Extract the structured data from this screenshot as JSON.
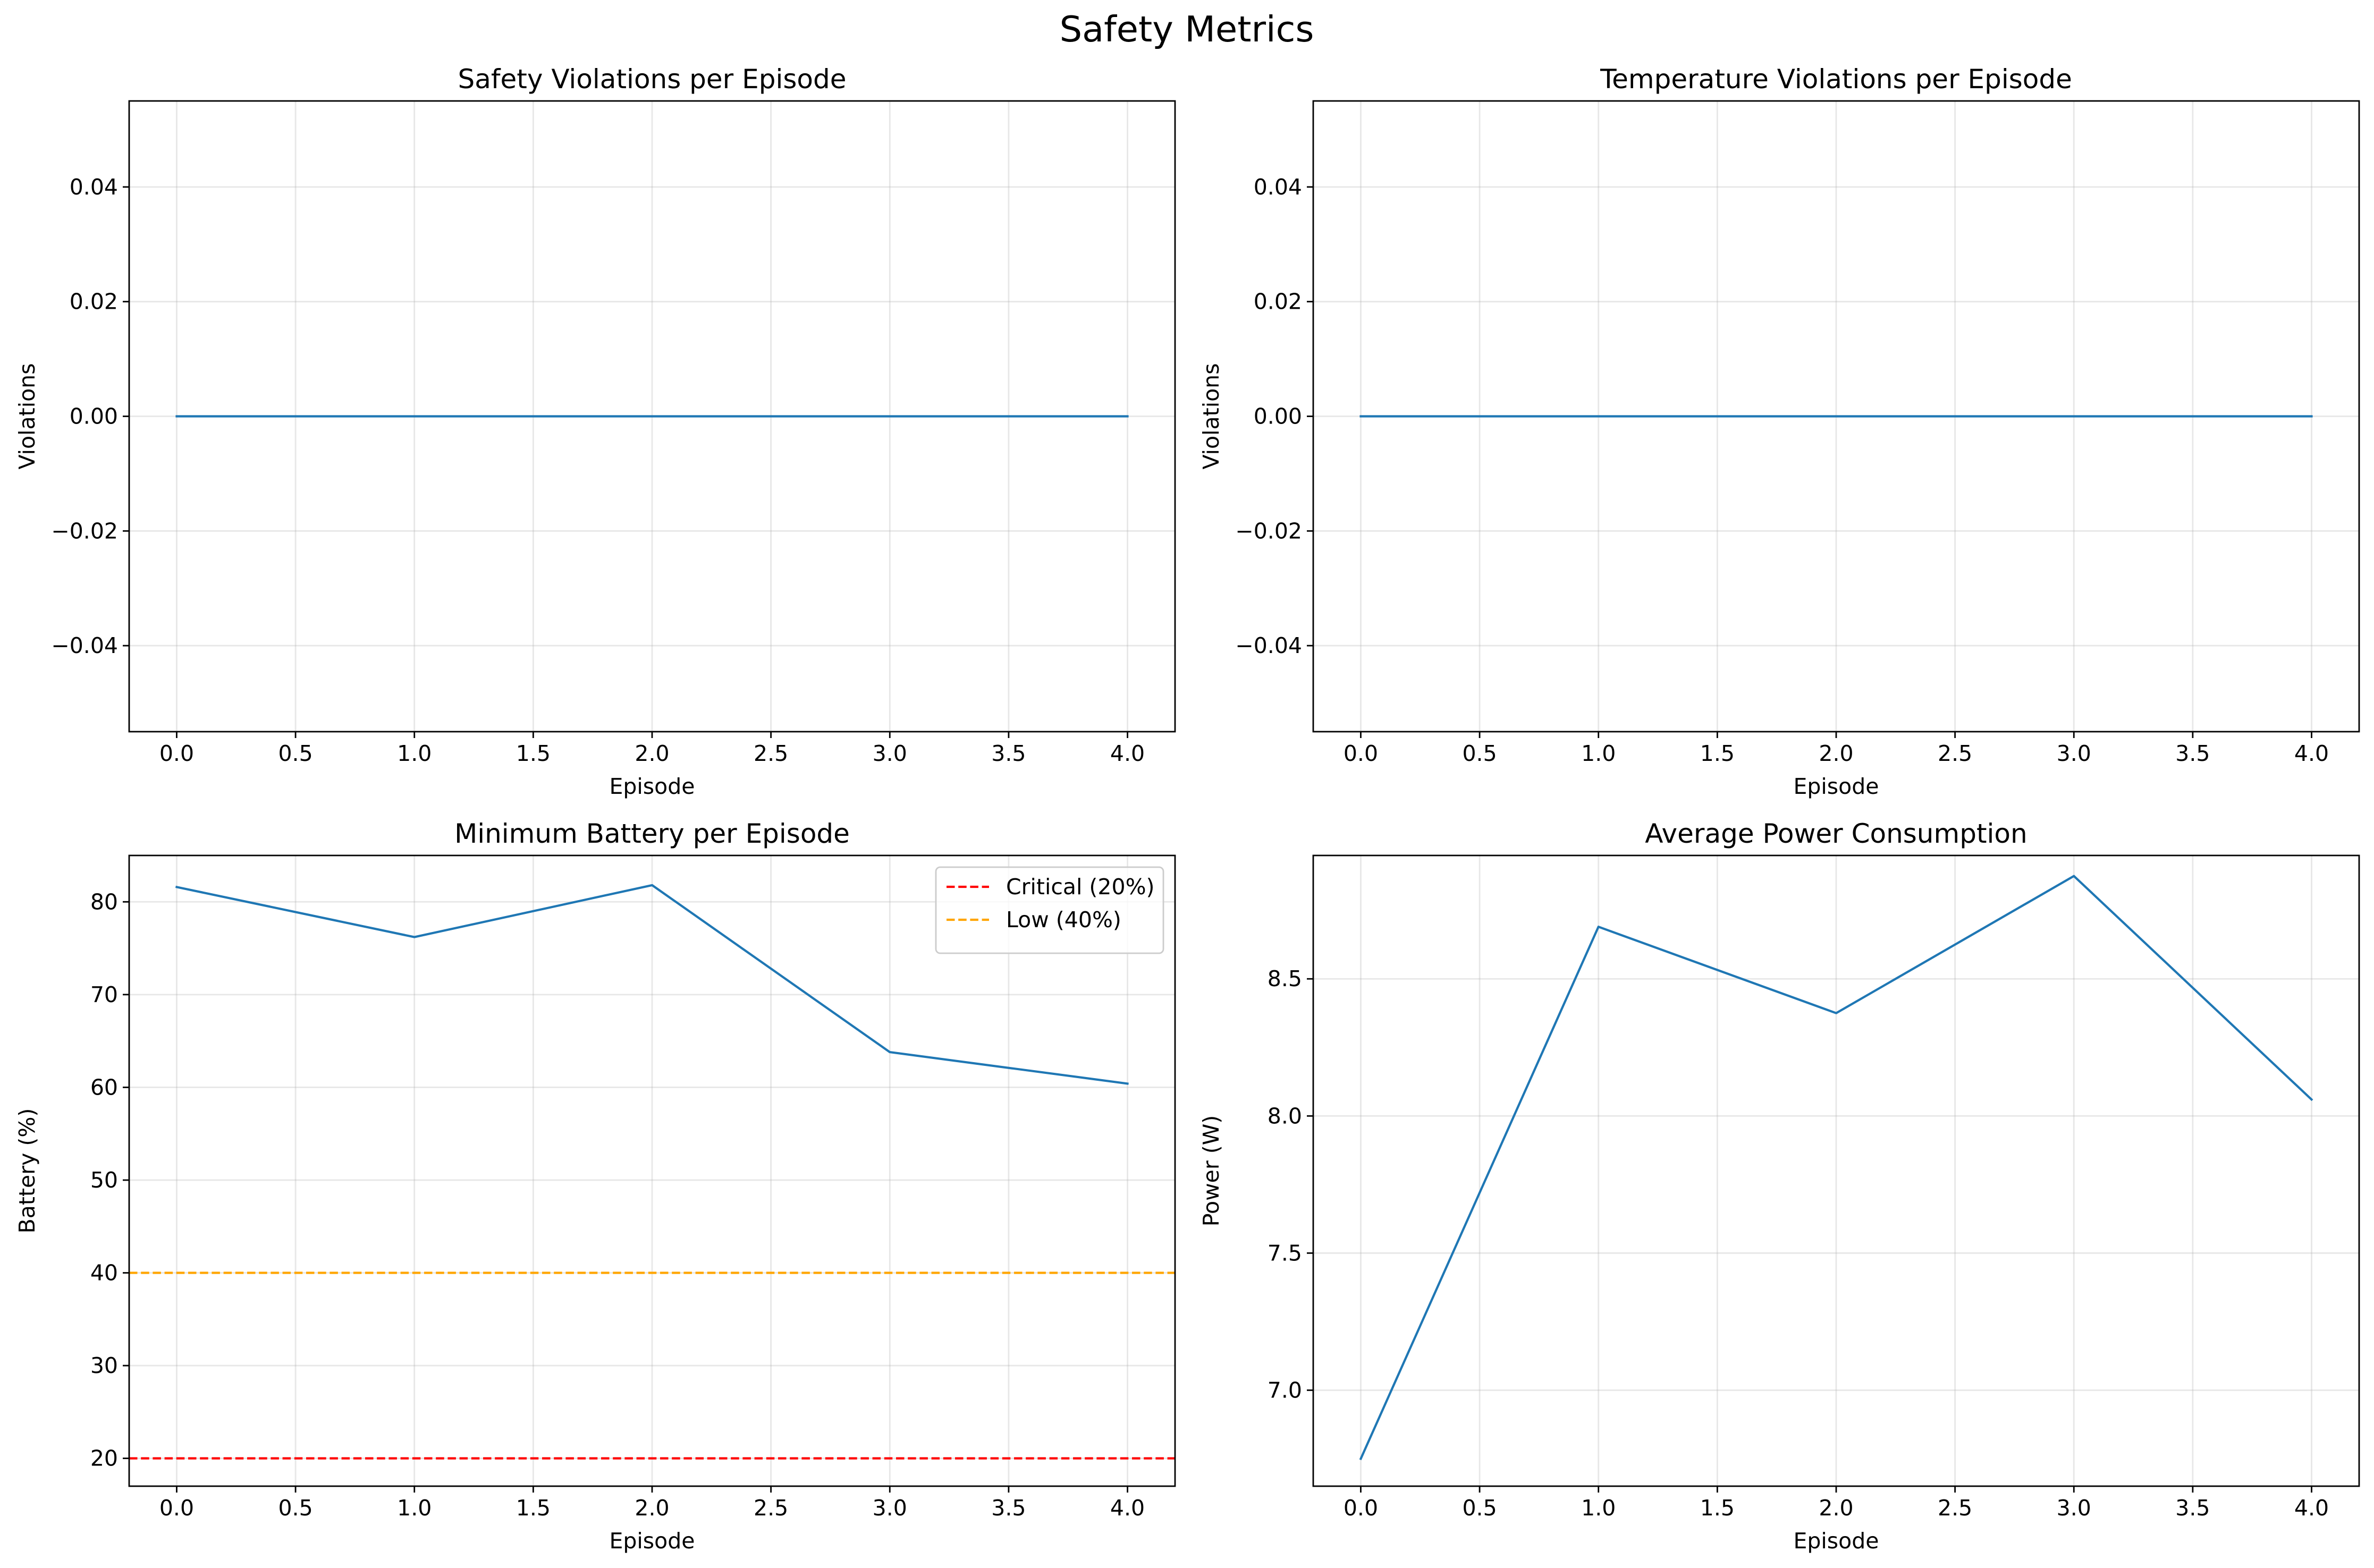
{
  "figure": {
    "title": "Safety Metrics"
  },
  "chart_data": [
    {
      "type": "line",
      "title": "Safety Violations per Episode",
      "xlabel": "Episode",
      "ylabel": "Violations",
      "xlim": [
        -0.2,
        4.2
      ],
      "ylim": [
        -0.055,
        0.055
      ],
      "xticks": [
        0.0,
        0.5,
        1.0,
        1.5,
        2.0,
        2.5,
        3.0,
        3.5,
        4.0
      ],
      "xtick_labels": [
        "0.0",
        "0.5",
        "1.0",
        "1.5",
        "2.0",
        "2.5",
        "3.0",
        "3.5",
        "4.0"
      ],
      "yticks": [
        -0.04,
        -0.02,
        0.0,
        0.02,
        0.04
      ],
      "ytick_labels": [
        "−0.04",
        "−0.02",
        "0.00",
        "0.02",
        "0.04"
      ],
      "grid": true,
      "series": [
        {
          "x": [
            0,
            1,
            2,
            3,
            4
          ],
          "values": [
            0,
            0,
            0,
            0,
            0
          ],
          "color": "#1f77b4"
        }
      ]
    },
    {
      "type": "line",
      "title": "Temperature Violations per Episode",
      "xlabel": "Episode",
      "ylabel": "Violations",
      "xlim": [
        -0.2,
        4.2
      ],
      "ylim": [
        -0.055,
        0.055
      ],
      "xticks": [
        0.0,
        0.5,
        1.0,
        1.5,
        2.0,
        2.5,
        3.0,
        3.5,
        4.0
      ],
      "xtick_labels": [
        "0.0",
        "0.5",
        "1.0",
        "1.5",
        "2.0",
        "2.5",
        "3.0",
        "3.5",
        "4.0"
      ],
      "yticks": [
        -0.04,
        -0.02,
        0.0,
        0.02,
        0.04
      ],
      "ytick_labels": [
        "−0.04",
        "−0.02",
        "0.00",
        "0.02",
        "0.04"
      ],
      "grid": true,
      "series": [
        {
          "x": [
            0,
            1,
            2,
            3,
            4
          ],
          "values": [
            0,
            0,
            0,
            0,
            0
          ],
          "color": "#1f77b4"
        }
      ]
    },
    {
      "type": "line",
      "title": "Minimum Battery per Episode",
      "xlabel": "Episode",
      "ylabel": "Battery (%)",
      "xlim": [
        -0.2,
        4.2
      ],
      "ylim": [
        17,
        85
      ],
      "xticks": [
        0.0,
        0.5,
        1.0,
        1.5,
        2.0,
        2.5,
        3.0,
        3.5,
        4.0
      ],
      "xtick_labels": [
        "0.0",
        "0.5",
        "1.0",
        "1.5",
        "2.0",
        "2.5",
        "3.0",
        "3.5",
        "4.0"
      ],
      "yticks": [
        20,
        30,
        40,
        50,
        60,
        70,
        80
      ],
      "ytick_labels": [
        "20",
        "30",
        "40",
        "50",
        "60",
        "70",
        "80"
      ],
      "grid": true,
      "series": [
        {
          "x": [
            0,
            1,
            2,
            3,
            4
          ],
          "values": [
            81.6,
            76.2,
            81.8,
            63.8,
            60.4
          ],
          "color": "#1f77b4"
        }
      ],
      "hlines": [
        {
          "name": "Critical (20%)",
          "y": 20,
          "color": "#ff0000",
          "style": "dashed"
        },
        {
          "name": "Low (40%)",
          "y": 40,
          "color": "#ffa500",
          "style": "dashed"
        }
      ],
      "legend": "top-right"
    },
    {
      "type": "line",
      "title": "Average Power Consumption",
      "xlabel": "Episode",
      "ylabel": "Power (W)",
      "xlim": [
        -0.2,
        4.2
      ],
      "ylim": [
        6.65,
        8.95
      ],
      "xticks": [
        0.0,
        0.5,
        1.0,
        1.5,
        2.0,
        2.5,
        3.0,
        3.5,
        4.0
      ],
      "xtick_labels": [
        "0.0",
        "0.5",
        "1.0",
        "1.5",
        "2.0",
        "2.5",
        "3.0",
        "3.5",
        "4.0"
      ],
      "yticks": [
        7.0,
        7.5,
        8.0,
        8.5
      ],
      "ytick_labels": [
        "7.0",
        "7.5",
        "8.0",
        "8.5"
      ],
      "grid": true,
      "series": [
        {
          "x": [
            0,
            1,
            2,
            3,
            4
          ],
          "values": [
            6.75,
            8.69,
            8.375,
            8.875,
            8.06
          ],
          "color": "#1f77b4"
        }
      ]
    }
  ]
}
